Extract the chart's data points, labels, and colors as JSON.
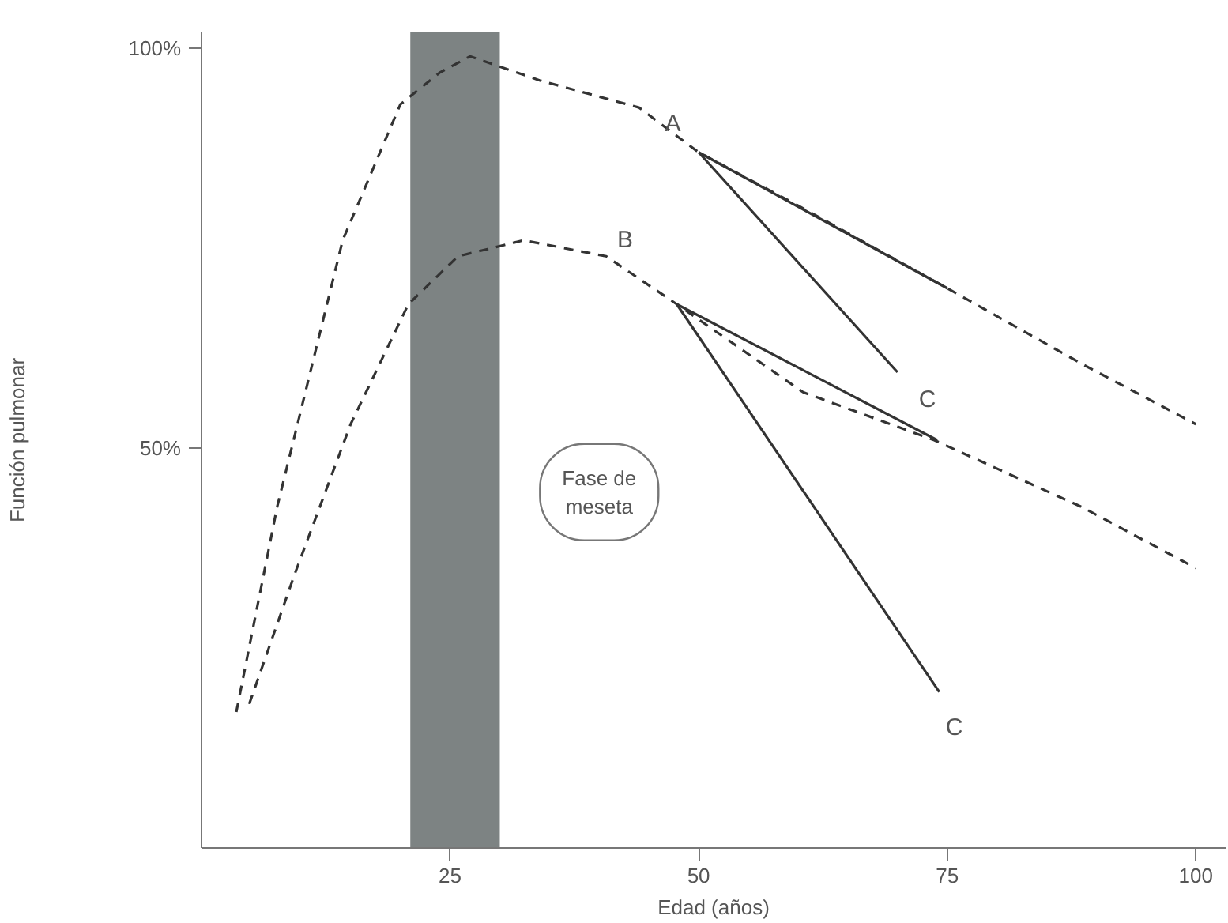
{
  "chart_data": {
    "type": "line",
    "xlabel": "Edad (años)",
    "ylabel": "Función pulmonar",
    "xlim": [
      0,
      103
    ],
    "ylim": [
      0,
      102
    ],
    "xticks": [
      25,
      50,
      75,
      100
    ],
    "yticks": [
      {
        "value": 50,
        "label": "50%"
      },
      {
        "value": 100,
        "label": "100%"
      }
    ],
    "grid": false,
    "marker": "none",
    "series": [
      {
        "color": "#333333",
        "line_style": "dashed",
        "x": [
          3.5,
          7.6,
          14.2,
          20,
          24,
          27,
          34,
          44,
          50,
          60.5,
          75,
          88.6,
          100
        ],
        "values": [
          17,
          42.6,
          76,
          93,
          97,
          99,
          96,
          92.6,
          87,
          80,
          70,
          60.5,
          53
        ]
      },
      {
        "color": "#333333",
        "line_style": "dashed",
        "x": [
          4.8,
          9.3,
          15,
          20.8,
          25.8,
          32.4,
          40.7,
          47.8,
          60.5,
          73.7,
          88.6,
          100
        ],
        "values": [
          18,
          34,
          53,
          68,
          74,
          76,
          74,
          68,
          57,
          51,
          42.6,
          35
        ]
      },
      {
        "color": "#333333",
        "line_style": "solid",
        "x": [
          50,
          75
        ],
        "values": [
          87,
          70
        ]
      },
      {
        "color": "#333333",
        "line_style": "solid",
        "x": [
          50,
          70
        ],
        "values": [
          87,
          59.5
        ]
      },
      {
        "color": "#333333",
        "line_style": "solid",
        "x": [
          47.8,
          74
        ],
        "values": [
          68,
          51
        ]
      },
      {
        "color": "#333333",
        "line_style": "solid",
        "x": [
          47.8,
          74.2
        ],
        "values": [
          68,
          19.5
        ]
      }
    ],
    "bands": [
      {
        "axis": "x",
        "from": 21,
        "to": 30,
        "color": "#7d8383"
      }
    ],
    "annotations": [
      "A",
      "B",
      "C",
      "C",
      "Fase de\nmeseta"
    ]
  }
}
